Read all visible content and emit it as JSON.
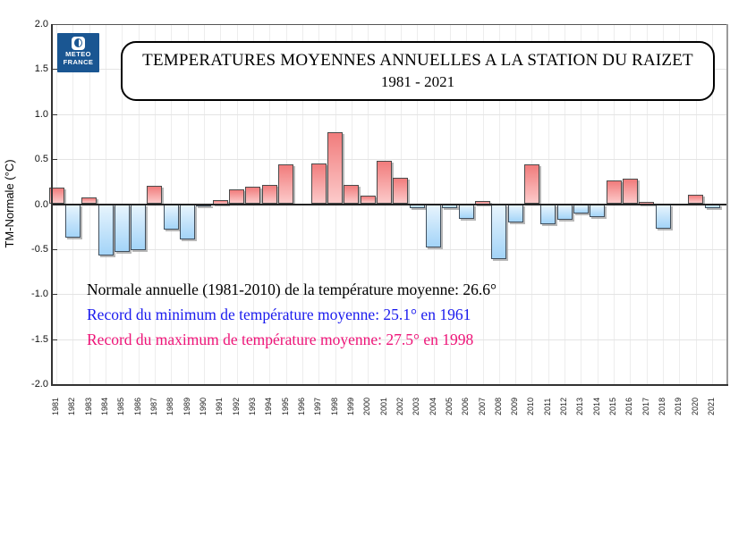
{
  "header": {
    "logo_line1": "METEO",
    "logo_line2": "FRANCE",
    "logo_color": "#1a5692",
    "title_line1": "TEMPERATURES MOYENNES ANNUELLES A LA STATION DU RAIZET",
    "title_line2": "1981 - 2021"
  },
  "annotations": {
    "normale": {
      "text": "Normale annuelle (1981-2010) de la température moyenne: 26.6°",
      "color": "#000000"
    },
    "record_min": {
      "text": "Record du minimum de température moyenne: 25.1° en 1961",
      "color": "#1a1aee"
    },
    "record_max": {
      "text": "Record du maximum de température moyenne: 27.5° en 1998",
      "color": "#ee1478"
    }
  },
  "chart_data": {
    "type": "bar",
    "title": "TEMPERATURES MOYENNES ANNUELLES A LA STATION DU RAIZET 1981 - 2021",
    "xlabel": "",
    "ylabel": "TM-Normale (°C)",
    "ylim": [
      -2.0,
      2.0
    ],
    "ytick_step": 0.5,
    "ytick_labels": [
      "2.0",
      "1.5",
      "1.0",
      "0.5",
      "0.0",
      "-0.5",
      "-1.0",
      "-1.5",
      "-2.0"
    ],
    "grid": true,
    "legend": "none",
    "positive_color_top": "#f17c7c",
    "positive_color_bottom": "#fccaca",
    "negative_color_top": "#e7f4fd",
    "negative_color_bottom": "#a3d4f8",
    "categories": [
      "1981",
      "1982",
      "1983",
      "1984",
      "1985",
      "1986",
      "1987",
      "1988",
      "1989",
      "1990",
      "1991",
      "1992",
      "1993",
      "1994",
      "1995",
      "1996",
      "1997",
      "1998",
      "1999",
      "2000",
      "2001",
      "2002",
      "2003",
      "2004",
      "2005",
      "2006",
      "2007",
      "2008",
      "2009",
      "2010",
      "2011",
      "2012",
      "2013",
      "2014",
      "2015",
      "2016",
      "2017",
      "2018",
      "2019",
      "2020",
      "2021"
    ],
    "values": [
      0.18,
      -0.37,
      0.07,
      -0.57,
      -0.53,
      -0.51,
      0.2,
      -0.28,
      -0.39,
      -0.02,
      0.05,
      0.16,
      0.19,
      0.21,
      0.44,
      0.0,
      0.45,
      0.8,
      0.21,
      0.09,
      0.48,
      0.29,
      -0.04,
      -0.48,
      -0.04,
      -0.16,
      0.04,
      -0.61,
      -0.2,
      0.44,
      -0.22,
      -0.17,
      -0.1,
      -0.14,
      0.26,
      0.28,
      0.03,
      -0.27,
      0.0,
      0.1,
      -0.04
    ]
  }
}
